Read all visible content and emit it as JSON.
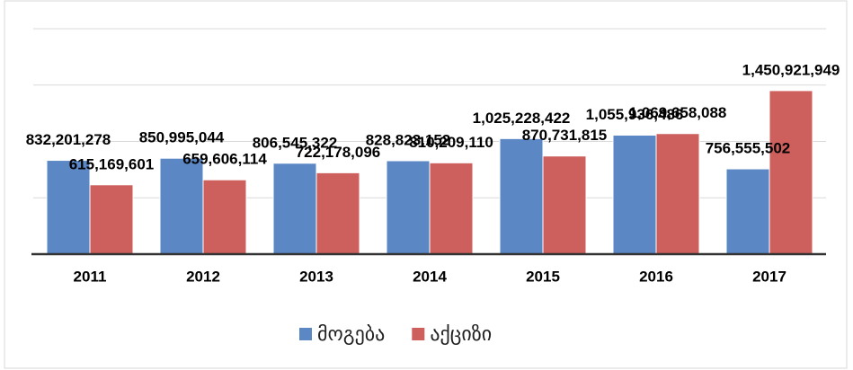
{
  "chart_data": {
    "type": "bar",
    "categories": [
      "2011",
      "2012",
      "2013",
      "2014",
      "2015",
      "2016",
      "2017"
    ],
    "series": [
      {
        "name": "მოგება",
        "color": "#5b87c5",
        "values": [
          832201278,
          850995044,
          806545322,
          828823152,
          1025228422,
          1055936486,
          756555502
        ],
        "value_labels": [
          "832,201,278",
          "850,995,044",
          "806,545,322",
          "828,823,152",
          "1,025,228,422",
          "1,055,936,486",
          "756,555,502"
        ]
      },
      {
        "name": "აქციზი",
        "color": "#cd5f5c",
        "values": [
          615169601,
          659606114,
          722178096,
          810209110,
          870731815,
          1069658088,
          1450921949
        ],
        "value_labels": [
          "615,169,601",
          "659,606,114",
          "722,178,096",
          "810,209,110",
          "870,731,815",
          "1,069,658,088",
          "1,450,921,949"
        ]
      }
    ],
    "ylim": [
      0,
      2000000000
    ],
    "yticks": [
      0,
      500000000,
      1000000000,
      1500000000,
      2000000000
    ],
    "grid": true,
    "legend": "bottom"
  }
}
